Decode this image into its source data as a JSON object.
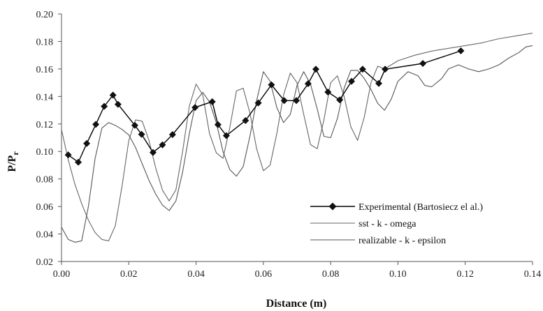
{
  "chart_data": {
    "type": "line",
    "title": "",
    "xlabel": "Distance (m)",
    "ylabel": "P/P",
    "ylabel_sub": "r",
    "xlim": [
      0.0,
      0.14
    ],
    "ylim": [
      0.02,
      0.2
    ],
    "x_ticks": [
      "0.00",
      "0.02",
      "0.04",
      "0.06",
      "0.08",
      "0.10",
      "0.12",
      "0.14"
    ],
    "y_ticks": [
      "0.02",
      "0.04",
      "0.06",
      "0.08",
      "0.10",
      "0.12",
      "0.14",
      "0.16",
      "0.18",
      "0.20"
    ],
    "grid": false,
    "legend_position": "bottom-right",
    "series": [
      {
        "name": "Experimental (Bartosiecz el al.)",
        "style": "line-with-diamond-markers",
        "color": "#000000",
        "x": [
          0.002,
          0.005,
          0.0075,
          0.0102,
          0.0127,
          0.0153,
          0.0168,
          0.0218,
          0.0238,
          0.0272,
          0.03,
          0.033,
          0.0397,
          0.0448,
          0.0465,
          0.049,
          0.0547,
          0.0585,
          0.0624,
          0.0662,
          0.0698,
          0.0733,
          0.0756,
          0.0792,
          0.0827,
          0.0862,
          0.0895,
          0.0943,
          0.0962,
          0.1074,
          0.1187
        ],
        "y": [
          0.0975,
          0.0922,
          0.1058,
          0.1197,
          0.1328,
          0.141,
          0.1343,
          0.119,
          0.1125,
          0.0993,
          0.1048,
          0.1123,
          0.132,
          0.1362,
          0.1195,
          0.1115,
          0.1225,
          0.1353,
          0.1485,
          0.137,
          0.137,
          0.1493,
          0.1598,
          0.1432,
          0.1375,
          0.151,
          0.1598,
          0.1495,
          0.1598,
          0.164,
          0.1732
        ]
      },
      {
        "name": "sst - k - omega",
        "style": "line",
        "color": "#666666",
        "x": [
          0.0,
          0.002,
          0.004,
          0.006,
          0.008,
          0.01,
          0.012,
          0.014,
          0.016,
          0.018,
          0.02,
          0.022,
          0.024,
          0.026,
          0.028,
          0.03,
          0.032,
          0.034,
          0.036,
          0.038,
          0.04,
          0.042,
          0.044,
          0.046,
          0.048,
          0.05,
          0.052,
          0.054,
          0.056,
          0.058,
          0.06,
          0.062,
          0.064,
          0.066,
          0.068,
          0.07,
          0.072,
          0.074,
          0.076,
          0.078,
          0.08,
          0.082,
          0.084,
          0.086,
          0.088,
          0.09,
          0.092,
          0.094,
          0.096,
          0.098,
          0.1,
          0.105,
          0.11,
          0.115,
          0.12,
          0.125,
          0.13,
          0.135,
          0.14
        ],
        "y": [
          0.116,
          0.094,
          0.076,
          0.062,
          0.05,
          0.041,
          0.036,
          0.035,
          0.046,
          0.075,
          0.108,
          0.123,
          0.122,
          0.108,
          0.088,
          0.072,
          0.064,
          0.072,
          0.1,
          0.133,
          0.149,
          0.141,
          0.113,
          0.099,
          0.095,
          0.117,
          0.144,
          0.146,
          0.128,
          0.102,
          0.086,
          0.09,
          0.113,
          0.141,
          0.157,
          0.15,
          0.127,
          0.105,
          0.102,
          0.123,
          0.15,
          0.155,
          0.14,
          0.118,
          0.108,
          0.125,
          0.15,
          0.162,
          0.16,
          0.163,
          0.166,
          0.17,
          0.173,
          0.175,
          0.177,
          0.179,
          0.182,
          0.184,
          0.186
        ]
      },
      {
        "name": "realizable - k - epsilon",
        "style": "line",
        "color": "#555555",
        "x": [
          0.0,
          0.002,
          0.004,
          0.006,
          0.008,
          0.01,
          0.012,
          0.014,
          0.016,
          0.018,
          0.02,
          0.022,
          0.024,
          0.026,
          0.028,
          0.03,
          0.032,
          0.034,
          0.036,
          0.038,
          0.04,
          0.042,
          0.044,
          0.046,
          0.048,
          0.05,
          0.052,
          0.054,
          0.056,
          0.058,
          0.06,
          0.062,
          0.064,
          0.066,
          0.068,
          0.07,
          0.072,
          0.074,
          0.076,
          0.078,
          0.08,
          0.082,
          0.084,
          0.086,
          0.088,
          0.09,
          0.092,
          0.094,
          0.096,
          0.098,
          0.1,
          0.103,
          0.106,
          0.108,
          0.11,
          0.113,
          0.115,
          0.118,
          0.121,
          0.124,
          0.127,
          0.13,
          0.133,
          0.136,
          0.138,
          0.14
        ],
        "y": [
          0.045,
          0.036,
          0.034,
          0.035,
          0.06,
          0.095,
          0.117,
          0.121,
          0.119,
          0.116,
          0.112,
          0.103,
          0.091,
          0.079,
          0.069,
          0.061,
          0.057,
          0.064,
          0.085,
          0.113,
          0.137,
          0.143,
          0.136,
          0.121,
          0.1,
          0.087,
          0.082,
          0.089,
          0.111,
          0.137,
          0.158,
          0.151,
          0.132,
          0.121,
          0.127,
          0.148,
          0.158,
          0.149,
          0.131,
          0.111,
          0.11,
          0.124,
          0.146,
          0.159,
          0.159,
          0.153,
          0.145,
          0.135,
          0.13,
          0.138,
          0.151,
          0.158,
          0.155,
          0.148,
          0.147,
          0.153,
          0.16,
          0.163,
          0.16,
          0.158,
          0.16,
          0.163,
          0.168,
          0.172,
          0.176,
          0.177
        ]
      }
    ]
  }
}
